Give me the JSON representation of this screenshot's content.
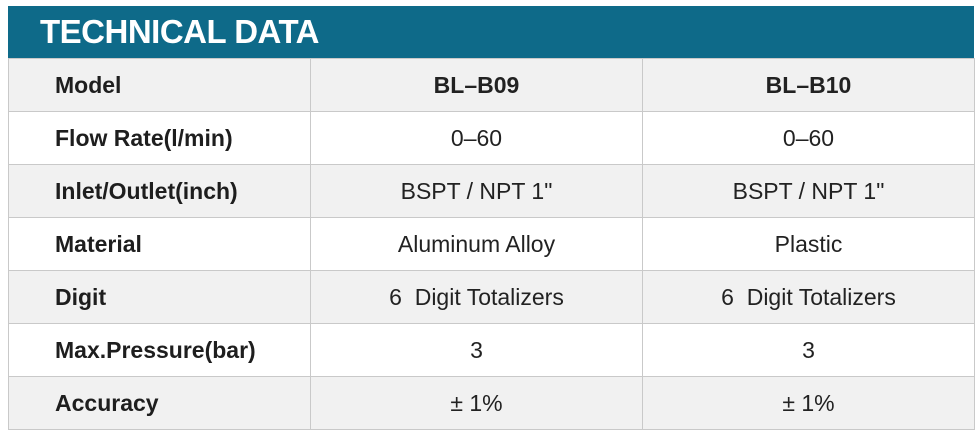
{
  "header": {
    "title": "TECHNICAL DATA"
  },
  "table": {
    "rows": [
      [
        "Model",
        "BL–B09",
        "BL–B10"
      ],
      [
        "Flow Rate(l/min)",
        "0–60",
        "0–60"
      ],
      [
        "Inlet/Outlet(inch)",
        "BSPT / NPT 1\"",
        "BSPT / NPT 1\""
      ],
      [
        "Material",
        "Aluminum Alloy",
        "Plastic"
      ],
      [
        "Digit",
        "6  Digit Totalizers",
        "6  Digit Totalizers"
      ],
      [
        "Max.Pressure(bar)",
        "3",
        "3"
      ],
      [
        "Accuracy",
        "± 1%",
        "± 1%"
      ]
    ]
  }
}
